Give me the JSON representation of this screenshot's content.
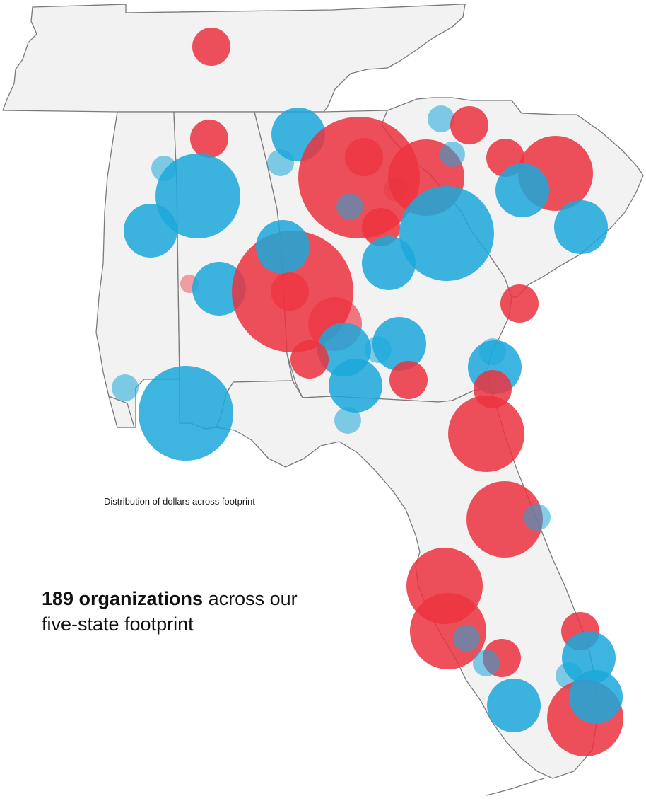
{
  "caption": "Distribution of dollars across footprint",
  "headline": {
    "bold": "189 organizations",
    "rest_line1": " across our",
    "line2": "five-state footprint"
  },
  "colors": {
    "red": "#ec3340",
    "blue": "#1ba8db",
    "land": "#f2f2f2",
    "border": "#7a7a7a"
  },
  "states": [
    "Tennessee",
    "Mississippi",
    "Alabama",
    "Georgia",
    "South Carolina",
    "Florida"
  ]
}
